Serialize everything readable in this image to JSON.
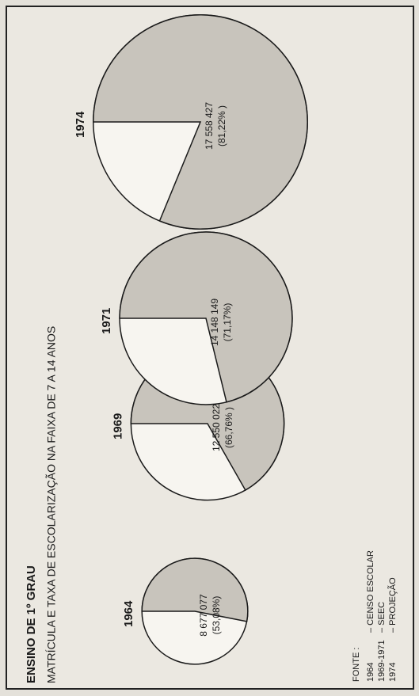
{
  "header": {
    "title": "ENSINO DE 1º GRAU",
    "subtitle": "MATRÍCULA E TAXA DE ESCOLARIZAÇÃO NA FAIXA DE 7 A 14 ANOS"
  },
  "chart_data": [
    {
      "type": "pie",
      "title": "1964",
      "values": [
        53.08
      ],
      "value_labels": [
        "(53,08%)"
      ],
      "enrollment": 8677077,
      "enrollment_label": "8 677 077",
      "colors": [
        "#c8c4bc",
        "#f7f5f0"
      ]
    },
    {
      "type": "pie",
      "title": "1969",
      "values": [
        66.76
      ],
      "value_labels": [
        "(66,76% )"
      ],
      "enrollment": 12550022,
      "enrollment_label": "12 550 022",
      "colors": [
        "#c8c4bc",
        "#f7f5f0"
      ]
    },
    {
      "type": "pie",
      "title": "1971",
      "values": [
        71.17
      ],
      "value_labels": [
        "(71,17%)"
      ],
      "enrollment": 14148149,
      "enrollment_label": "14 148 149",
      "colors": [
        "#c8c4bc",
        "#f7f5f0"
      ]
    },
    {
      "type": "pie",
      "title": "1974",
      "values": [
        81.22
      ],
      "value_labels": [
        "(81,22% )"
      ],
      "enrollment": 17558427,
      "enrollment_label": "17 558 427",
      "colors": [
        "#c8c4bc",
        "#f7f5f0"
      ]
    }
  ],
  "source": {
    "label": "FONTE :",
    "rows": [
      [
        "1964",
        "– CENSO ESCOLAR"
      ],
      [
        "1969-1971",
        "– SEEC"
      ],
      [
        "1974",
        "– PROJEÇÃO"
      ]
    ]
  }
}
